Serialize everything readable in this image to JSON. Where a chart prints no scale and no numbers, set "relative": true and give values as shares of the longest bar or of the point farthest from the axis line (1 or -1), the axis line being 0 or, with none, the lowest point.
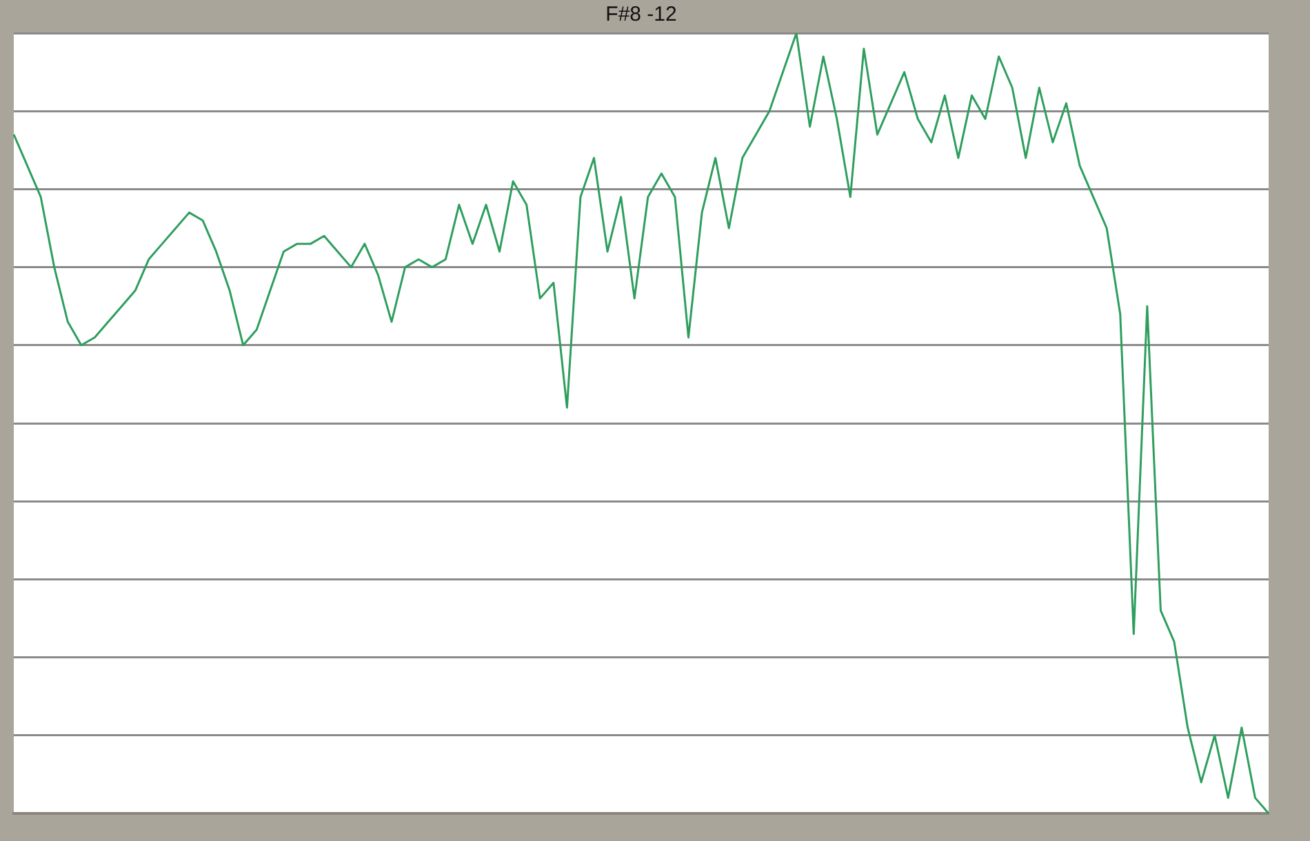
{
  "chart_data": {
    "type": "line",
    "title": "F#8 -12",
    "relative": true,
    "grid": "y",
    "legend": false,
    "marker": "none",
    "line_style": "solid",
    "categories": [
      null,
      null,
      null,
      null,
      null,
      null,
      null,
      null,
      null,
      null,
      null,
      null,
      null,
      null,
      null,
      null,
      null,
      null,
      null,
      null,
      null,
      null,
      null,
      null,
      null,
      null,
      null,
      null,
      null,
      null,
      null,
      null,
      null,
      null,
      null,
      null,
      null,
      null,
      null,
      null,
      null,
      null,
      null,
      null,
      null,
      null,
      null,
      null,
      null,
      null,
      null,
      null,
      null,
      null,
      null,
      null,
      null,
      null,
      null,
      null,
      null,
      null,
      null,
      null,
      null,
      null,
      null,
      null,
      null,
      null,
      null,
      null,
      null,
      null,
      null,
      null,
      null,
      null,
      null,
      null,
      null,
      null,
      null,
      null,
      null,
      null,
      null,
      null,
      null,
      null,
      null,
      null,
      null,
      null
    ],
    "series": [
      {
        "color": "#2e9e5e",
        "values": [
          0.87,
          0.83,
          0.79,
          0.7,
          0.63,
          0.6,
          0.61,
          0.63,
          0.65,
          0.67,
          0.71,
          0.73,
          0.75,
          0.77,
          0.76,
          0.72,
          0.67,
          0.6,
          0.62,
          0.67,
          0.72,
          0.73,
          0.73,
          0.74,
          0.72,
          0.7,
          0.73,
          0.69,
          0.63,
          0.7,
          0.71,
          0.7,
          0.71,
          0.78,
          0.73,
          0.78,
          0.72,
          0.81,
          0.78,
          0.66,
          0.68,
          0.52,
          0.79,
          0.84,
          0.72,
          0.79,
          0.66,
          0.79,
          0.82,
          0.79,
          0.61,
          0.77,
          0.84,
          0.75,
          0.84,
          0.87,
          0.9,
          0.95,
          1,
          0.88,
          0.97,
          0.89,
          0.79,
          0.98,
          0.87,
          0.91,
          0.95,
          0.89,
          0.86,
          0.92,
          0.84,
          0.92,
          0.89,
          0.97,
          0.93,
          0.84,
          0.93,
          0.86,
          0.91,
          0.83,
          0.79,
          0.75,
          0.64,
          0.23,
          0.65,
          0.26,
          0.22,
          0.11,
          0.04,
          0.1,
          0.02,
          0.11,
          0.02,
          0
        ]
      }
    ]
  }
}
